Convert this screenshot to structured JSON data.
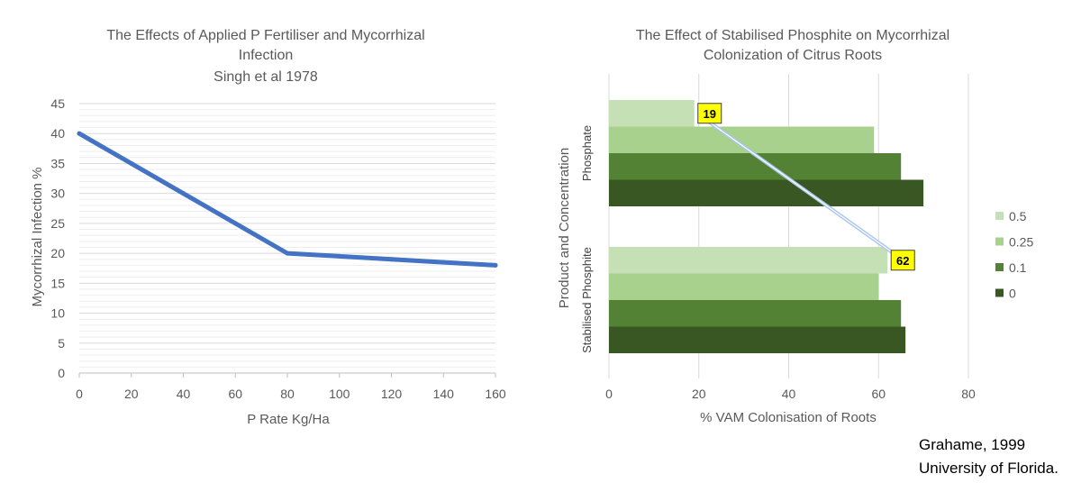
{
  "chart_data": [
    {
      "type": "line",
      "title_lines": [
        "The Effects of Applied P Fertiliser and Mycorrhizal",
        "Infection",
        "Singh et al 1978"
      ],
      "xlabel": "P Rate Kg/Ha",
      "ylabel": "Mycorrhizal Infection %",
      "x": [
        0,
        20,
        40,
        60,
        80,
        100,
        120,
        140,
        160
      ],
      "y": [
        40,
        35,
        30,
        25,
        20,
        19.5,
        19,
        18.5,
        18
      ],
      "xlim": [
        0,
        160
      ],
      "ylim": [
        0,
        45
      ],
      "xticks": [
        "0",
        "20",
        "40",
        "60",
        "80",
        "100",
        "120",
        "140",
        "160"
      ],
      "yticks": [
        "0",
        "5",
        "10",
        "15",
        "20",
        "25",
        "30",
        "35",
        "40",
        "45"
      ],
      "grid": true,
      "color": "#4472C4"
    },
    {
      "type": "bar",
      "orientation": "horizontal",
      "title_lines": [
        "The Effect of Stabilised Phosphite on Mycorrhizal",
        "Colonization of Citrus Roots"
      ],
      "xlabel": "% VAM Colonisation of Roots",
      "ylabel": "Product and Concentration",
      "categories": [
        "Phosphate",
        "Stabilised Phosphite"
      ],
      "series": [
        {
          "name": "0.5",
          "values": [
            19,
            62
          ],
          "color": "#C5E0B4"
        },
        {
          "name": "0.25",
          "values": [
            59,
            60
          ],
          "color": "#A9D18E"
        },
        {
          "name": "0.1",
          "values": [
            65,
            65
          ],
          "color": "#548235"
        },
        {
          "name": "0",
          "values": [
            70,
            66
          ],
          "color": "#385723"
        }
      ],
      "xlim": [
        0,
        80
      ],
      "xticks": [
        "0",
        "20",
        "40",
        "60",
        "80"
      ],
      "grid": true,
      "legend": "right",
      "callouts": [
        {
          "label": "19",
          "series": "0.5",
          "category": "Phosphate"
        },
        {
          "label": "62",
          "series": "0.5",
          "category": "Stabilised Phosphite"
        }
      ]
    }
  ],
  "credit": {
    "line1": "Grahame, 1999",
    "line2": "University of Florida."
  }
}
